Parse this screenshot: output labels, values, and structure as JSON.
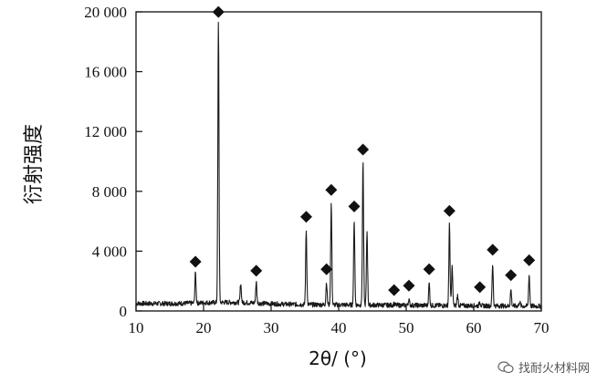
{
  "chart_data": {
    "type": "line",
    "xlabel": "2θ/ (°)",
    "ylabel": "衍射强度",
    "xlim": [
      10,
      70
    ],
    "ylim": [
      0,
      20000
    ],
    "x_ticks": [
      10,
      20,
      30,
      40,
      50,
      60,
      70
    ],
    "x_tick_labels": [
      "10",
      "20",
      "30",
      "40",
      "50",
      "60",
      "70"
    ],
    "y_ticks": [
      0,
      4000,
      8000,
      12000,
      16000,
      20000
    ],
    "y_tick_labels": [
      "0",
      "4 000",
      "8 000",
      "12 000",
      "16 000",
      "20 000"
    ],
    "baseline": 500,
    "peaks": [
      {
        "x": 18.8,
        "y": 2500,
        "marked": true
      },
      {
        "x": 22.2,
        "y": 19200,
        "marked": true
      },
      {
        "x": 25.5,
        "y": 1800,
        "marked": false
      },
      {
        "x": 27.8,
        "y": 1900,
        "marked": true
      },
      {
        "x": 35.2,
        "y": 5500,
        "marked": true
      },
      {
        "x": 38.2,
        "y": 2000,
        "marked": true
      },
      {
        "x": 38.9,
        "y": 7300,
        "marked": true
      },
      {
        "x": 42.3,
        "y": 6200,
        "marked": true
      },
      {
        "x": 43.6,
        "y": 10000,
        "marked": true
      },
      {
        "x": 44.2,
        "y": 5400,
        "marked": false
      },
      {
        "x": 48.2,
        "y": 600,
        "marked": true
      },
      {
        "x": 50.4,
        "y": 900,
        "marked": true
      },
      {
        "x": 53.4,
        "y": 2000,
        "marked": true
      },
      {
        "x": 56.4,
        "y": 5900,
        "marked": true
      },
      {
        "x": 56.8,
        "y": 3100,
        "marked": false
      },
      {
        "x": 57.6,
        "y": 1200,
        "marked": false
      },
      {
        "x": 60.9,
        "y": 800,
        "marked": true
      },
      {
        "x": 62.8,
        "y": 3300,
        "marked": true
      },
      {
        "x": 65.5,
        "y": 1600,
        "marked": true
      },
      {
        "x": 66.8,
        "y": 800,
        "marked": false
      },
      {
        "x": 68.2,
        "y": 2600,
        "marked": true
      }
    ],
    "marker": "diamond",
    "grid": false
  },
  "watermark": {
    "text": "找耐火材料网",
    "icon": "wechat-icon"
  },
  "colors": {
    "line": "#1a1a1a",
    "marker": "#111111",
    "axis": "#111111"
  }
}
